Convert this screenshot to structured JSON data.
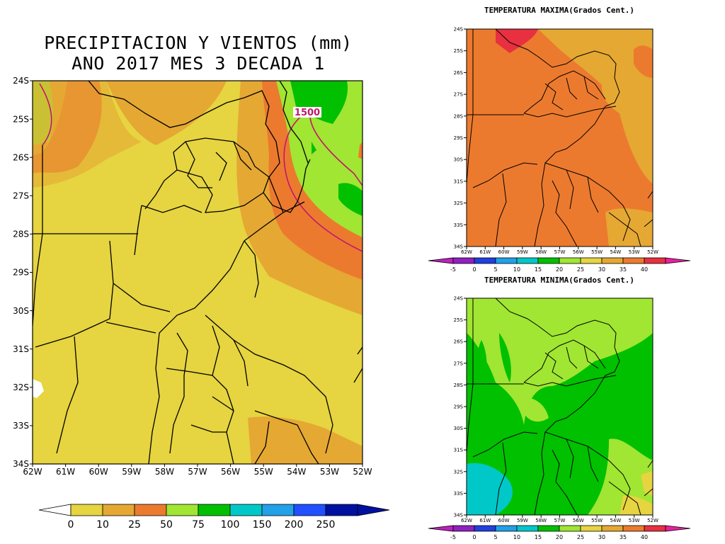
{
  "main_panel": {
    "title_line1": "PRECIPITACION Y VIENTOS (mm)",
    "title_line2": "ANO 2017 MES 3 DECADA 1",
    "contour_label": "1500",
    "lat_ticks": [
      "24S",
      "25S",
      "26S",
      "27S",
      "28S",
      "29S",
      "30S",
      "31S",
      "32S",
      "33S",
      "34S"
    ],
    "lon_ticks": [
      "62W",
      "61W",
      "60W",
      "59W",
      "58W",
      "57W",
      "56W",
      "55W",
      "54W",
      "53W",
      "52W"
    ],
    "colorbar_labels": [
      "0",
      "10",
      "25",
      "50",
      "75",
      "100",
      "150",
      "200",
      "250"
    ],
    "colorbar_colors": [
      "#e6d440",
      "#e5a833",
      "#ec7a2e",
      "#a0e632",
      "#00c000",
      "#00c8c8",
      "#22a0e8",
      "#2050ff",
      "#0010a0"
    ],
    "colors": {
      "yellow": "#e6d440",
      "gold": "#e5a833",
      "orange": "#ec7a2e",
      "lightgreen": "#a0e632",
      "green": "#00c000",
      "contour": "#c0186f"
    }
  },
  "max_panel": {
    "title": "TEMPERATURA MAXIMA(Grados Cent.)",
    "lat_ticks": [
      "24S",
      "25S",
      "26S",
      "27S",
      "28S",
      "29S",
      "30S",
      "31S",
      "32S",
      "33S",
      "34S"
    ],
    "lon_ticks": [
      "62W",
      "61W",
      "60W",
      "59W",
      "58W",
      "57W",
      "56W",
      "55W",
      "54W",
      "53W",
      "52W"
    ],
    "colorbar_labels": [
      "-5",
      "0",
      "5",
      "10",
      "15",
      "20",
      "25",
      "30",
      "35",
      "40"
    ],
    "colorbar_colors": [
      "#9020c0",
      "#2040e0",
      "#22a0e8",
      "#00c8c8",
      "#00c000",
      "#a0e632",
      "#e6d440",
      "#e5a833",
      "#ec7a2e",
      "#e83040"
    ]
  },
  "min_panel": {
    "title": "TEMPERATURA MINIMA(Grados Cent.)",
    "lat_ticks": [
      "24S",
      "25S",
      "26S",
      "27S",
      "28S",
      "29S",
      "30S",
      "31S",
      "32S",
      "33S",
      "34S"
    ],
    "lon_ticks": [
      "62W",
      "61W",
      "60W",
      "59W",
      "58W",
      "57W",
      "56W",
      "55W",
      "54W",
      "53W",
      "52W"
    ],
    "colorbar_labels": [
      "-5",
      "0",
      "5",
      "10",
      "15",
      "20",
      "25",
      "30",
      "35",
      "40"
    ],
    "colorbar_colors": [
      "#9020c0",
      "#2040e0",
      "#22a0e8",
      "#00c8c8",
      "#00c000",
      "#a0e632",
      "#e6d440",
      "#e5a833",
      "#ec7a2e",
      "#e83040"
    ]
  }
}
